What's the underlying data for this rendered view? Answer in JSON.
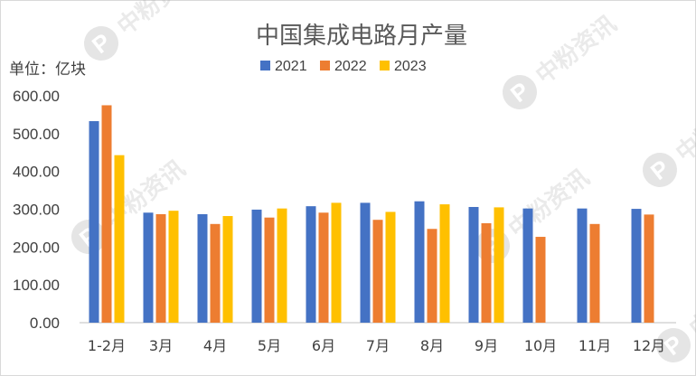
{
  "chart_data": {
    "type": "bar",
    "title": "中国集成电路月产量",
    "unit_label": "单位：亿块",
    "categories": [
      "1-2月",
      "3月",
      "4月",
      "5月",
      "6月",
      "7月",
      "8月",
      "9月",
      "10月",
      "11月",
      "12月"
    ],
    "series": [
      {
        "name": "2021",
        "color": "#4472c4",
        "values": [
          533,
          291,
          287,
          299,
          308,
          317,
          321,
          306,
          302,
          302,
          301
        ]
      },
      {
        "name": "2022",
        "color": "#ed7d31",
        "values": [
          575,
          287,
          261,
          278,
          291,
          272,
          248,
          263,
          227,
          261,
          286
        ]
      },
      {
        "name": "2023",
        "color": "#ffc000",
        "values": [
          443,
          296,
          282,
          302,
          317,
          293,
          313,
          305,
          null,
          null,
          null
        ]
      }
    ],
    "ylim": [
      0,
      600
    ],
    "yticks": [
      "0.00",
      "100.00",
      "200.00",
      "300.00",
      "400.00",
      "500.00",
      "600.00"
    ],
    "grid": false,
    "legend_position": "top"
  },
  "watermark": {
    "text": "中粉资讯",
    "logo_letter": "P"
  }
}
